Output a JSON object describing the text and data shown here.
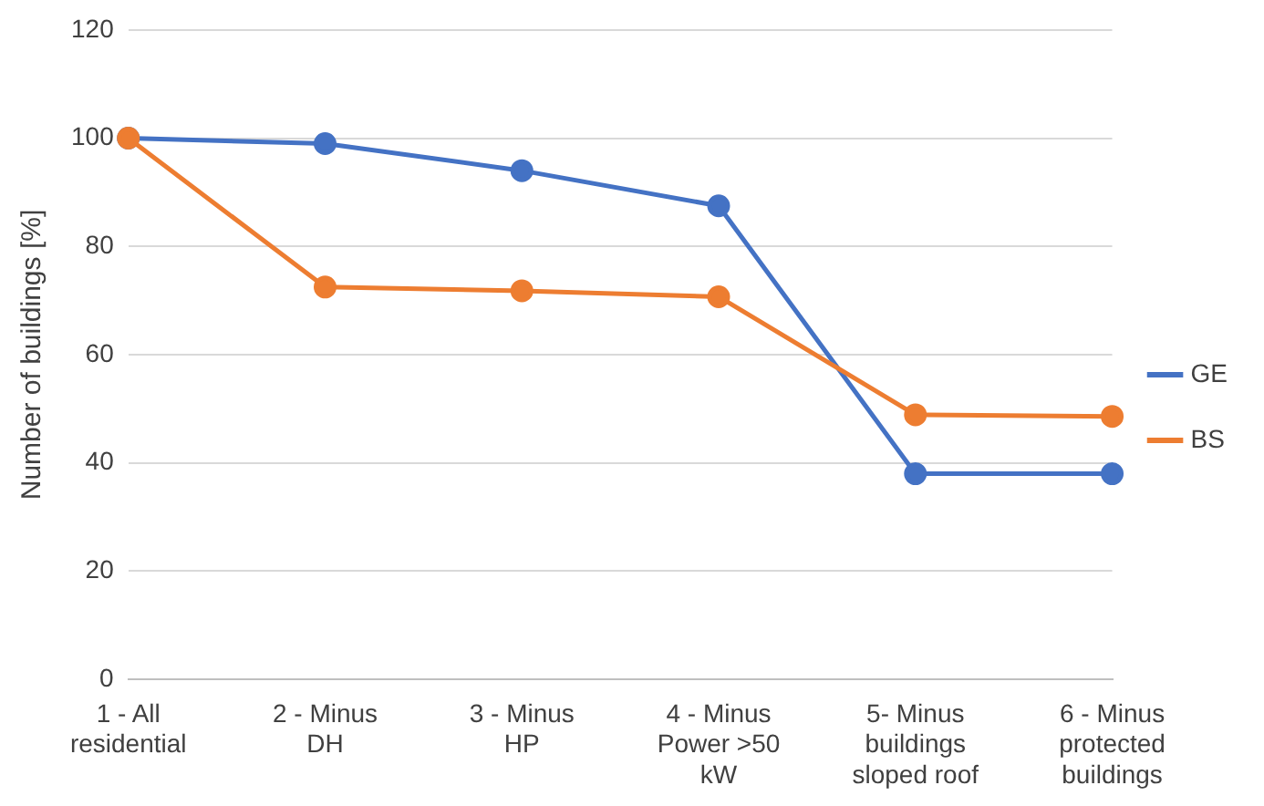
{
  "chart_data": {
    "type": "line",
    "ylabel": "Number of buildings [%]",
    "categories": [
      "1 - All residential",
      "2 - Minus DH",
      "3 - Minus HP",
      "4 - Minus Power >50 kW",
      "5- Minus buildings sloped roof",
      "6 - Minus protected buildings"
    ],
    "series": [
      {
        "name": "GE",
        "color": "#4472c4",
        "values": [
          100,
          99,
          94,
          87.5,
          38,
          38
        ]
      },
      {
        "name": "BS",
        "color": "#ed7d31",
        "values": [
          100,
          72.5,
          71.8,
          70.7,
          48.9,
          48.6
        ]
      }
    ],
    "ylim": [
      0,
      120
    ],
    "yticks": [
      0,
      20,
      40,
      60,
      80,
      100,
      120
    ],
    "grid": "y",
    "legend": "right",
    "marker": "circle",
    "line_style": "solid"
  }
}
